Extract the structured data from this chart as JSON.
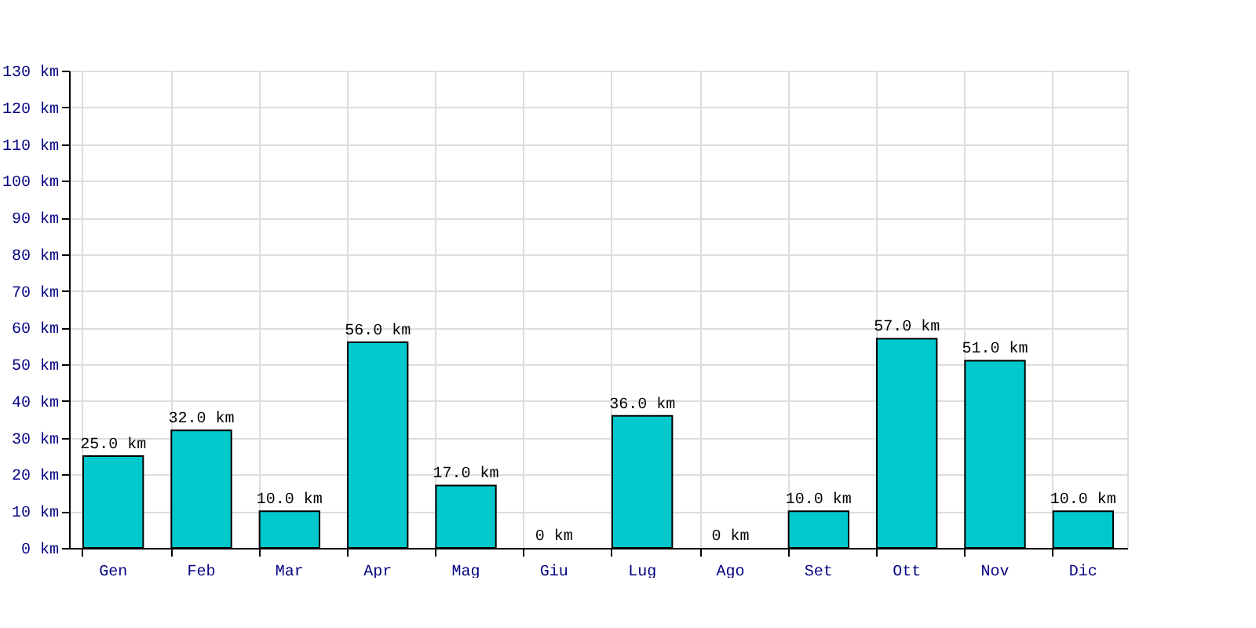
{
  "chart_data": {
    "type": "bar",
    "categories": [
      "Gen",
      "Feb",
      "Mar",
      "Apr",
      "Mag",
      "Giu",
      "Lug",
      "Ago",
      "Set",
      "Ott",
      "Nov",
      "Dic"
    ],
    "values": [
      25,
      32,
      10,
      56,
      17,
      0,
      36,
      0,
      10,
      57,
      51,
      10
    ],
    "value_labels": [
      "25.0 km",
      "32.0 km",
      "10.0 km",
      "56.0 km",
      "17.0 km",
      "0 km",
      "36.0 km",
      "0 km",
      "10.0 km",
      "57.0 km",
      "51.0 km",
      "10.0 km"
    ],
    "color": "#00c8cc",
    "ylim": [
      0,
      130
    ],
    "yticks": [
      {
        "value": 0,
        "label": "0 km"
      },
      {
        "value": 10,
        "label": "10 km"
      },
      {
        "value": 20,
        "label": "20 km"
      },
      {
        "value": 30,
        "label": "30 km"
      },
      {
        "value": 40,
        "label": "40 km"
      },
      {
        "value": 50,
        "label": "50 km"
      },
      {
        "value": 60,
        "label": "60 km"
      },
      {
        "value": 70,
        "label": "70 km"
      },
      {
        "value": 80,
        "label": "80 km"
      },
      {
        "value": 90,
        "label": "90 km"
      },
      {
        "value": 100,
        "label": "100 km"
      },
      {
        "value": 110,
        "label": "110 km"
      },
      {
        "value": 120,
        "label": "120 km"
      },
      {
        "value": 130,
        "label": "130 km"
      }
    ],
    "grid": true
  }
}
